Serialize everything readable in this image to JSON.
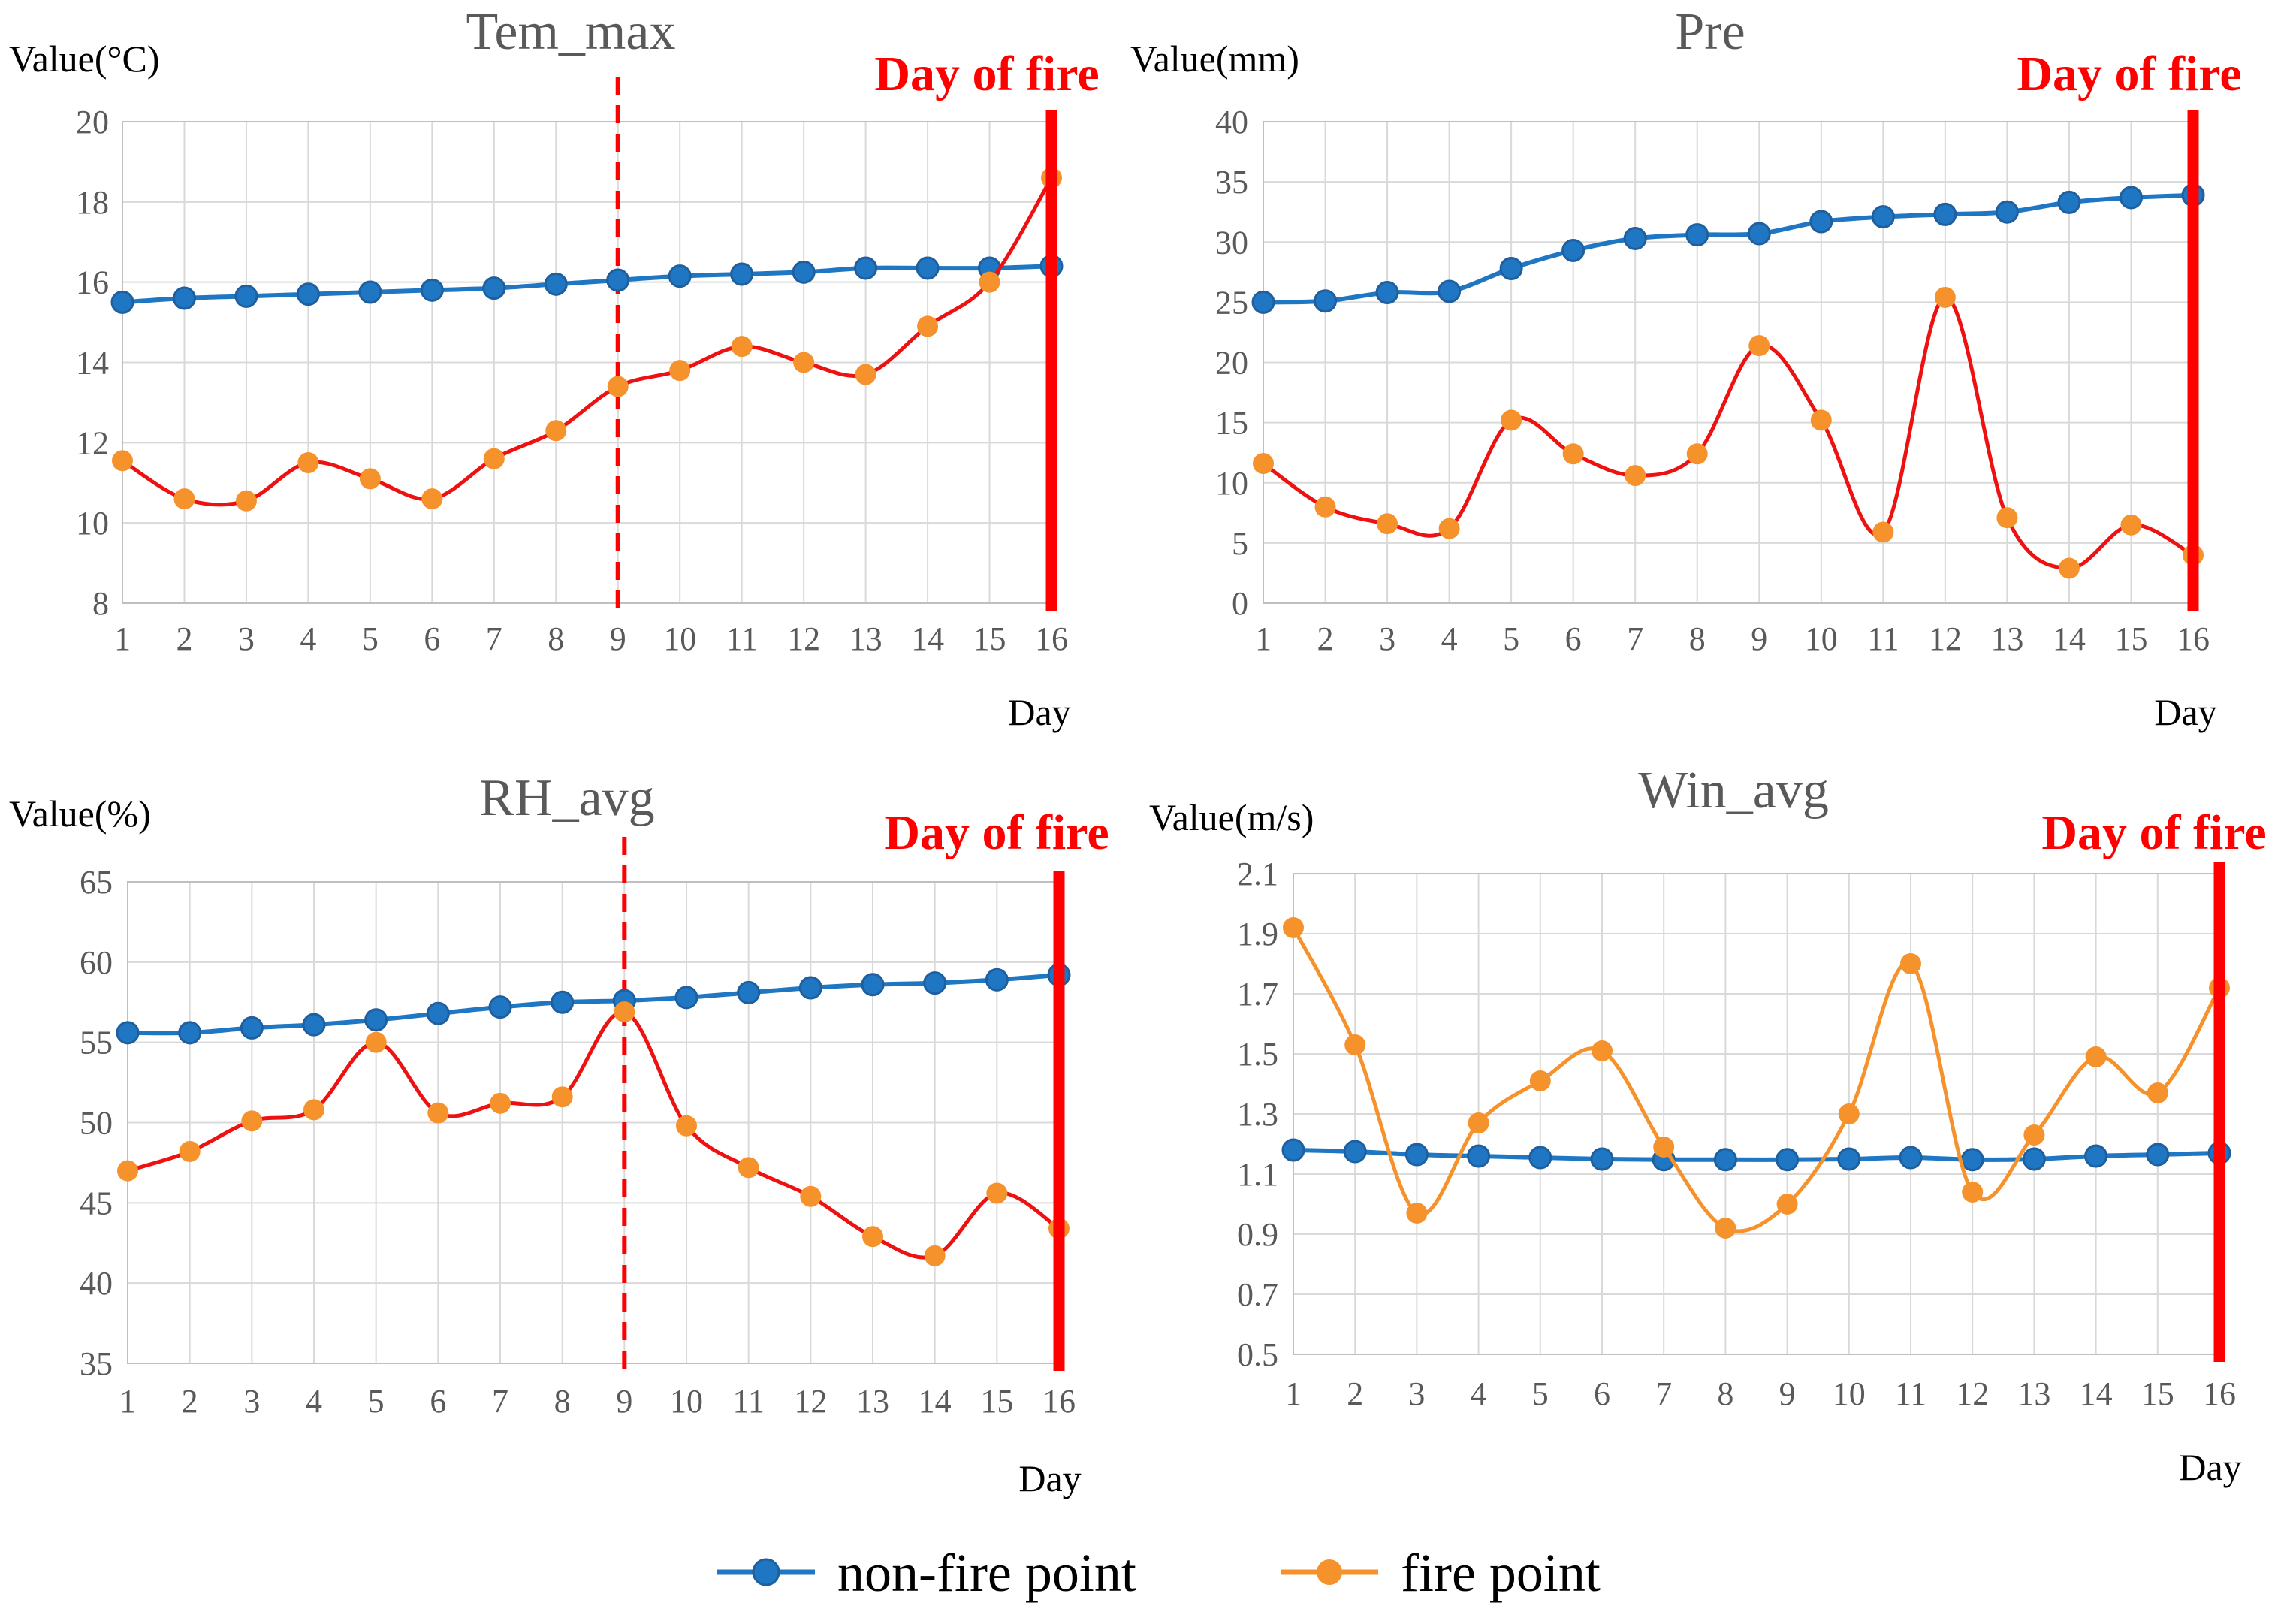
{
  "colors": {
    "non_fire_line": "#1f77c4",
    "non_fire_marker_edge": "#1f5f9e",
    "fire_marker": "#f5922b",
    "fire_line_red": "#ee1111",
    "fire_line_orange": "#f5922b",
    "fire_day": "#ff0000",
    "grid": "#d9d9d9",
    "axis": "#bfbfbf"
  },
  "legend": {
    "non_fire_label": "non-fire point",
    "fire_label": "fire point"
  },
  "chart_data": [
    {
      "type": "line",
      "title": "Tem_max",
      "ylabel": "Value(°C)",
      "xlabel": "Day",
      "fire_day_label": "Day of fire",
      "x": [
        1,
        2,
        3,
        4,
        5,
        6,
        7,
        8,
        9,
        10,
        11,
        12,
        13,
        14,
        15,
        16
      ],
      "ylim": [
        8,
        20
      ],
      "yticks": [
        8,
        10,
        12,
        14,
        16,
        18,
        20
      ],
      "y_tick_labels": [
        "8",
        "10",
        "12",
        "14",
        "16",
        "18",
        "20"
      ],
      "fire_day": 16,
      "dashed_line_day": 9,
      "fire_line_color": "red",
      "grid": true,
      "series": [
        {
          "key": "non_fire",
          "values": [
            15.5,
            15.6,
            15.65,
            15.7,
            15.75,
            15.8,
            15.85,
            15.95,
            16.05,
            16.15,
            16.2,
            16.25,
            16.35,
            16.35,
            16.35,
            16.4
          ]
        },
        {
          "key": "fire",
          "values": [
            11.55,
            10.6,
            10.55,
            11.5,
            11.1,
            10.6,
            11.6,
            12.3,
            13.4,
            13.8,
            14.4,
            14.0,
            13.7,
            14.9,
            16.0,
            18.6
          ]
        }
      ]
    },
    {
      "type": "line",
      "title": "Pre",
      "ylabel": "Value(mm)",
      "xlabel": "Day",
      "fire_day_label": "Day of fire",
      "x": [
        1,
        2,
        3,
        4,
        5,
        6,
        7,
        8,
        9,
        10,
        11,
        12,
        13,
        14,
        15,
        16
      ],
      "ylim": [
        0,
        40
      ],
      "yticks": [
        0,
        5,
        10,
        15,
        20,
        25,
        30,
        35,
        40
      ],
      "y_tick_labels": [
        "0",
        "5",
        "10",
        "15",
        "20",
        "25",
        "30",
        "35",
        "40"
      ],
      "fire_day": 16,
      "dashed_line_day": null,
      "fire_line_color": "red",
      "grid": true,
      "series": [
        {
          "key": "non_fire",
          "values": [
            25.0,
            25.1,
            25.8,
            25.9,
            27.8,
            29.3,
            30.3,
            30.6,
            30.7,
            31.7,
            32.1,
            32.3,
            32.5,
            33.3,
            33.7,
            33.9
          ]
        },
        {
          "key": "fire",
          "values": [
            11.6,
            8.0,
            6.6,
            6.2,
            15.2,
            12.4,
            10.6,
            12.4,
            21.4,
            15.2,
            5.9,
            25.4,
            7.1,
            2.9,
            6.5,
            4.0
          ]
        }
      ]
    },
    {
      "type": "line",
      "title": "RH_avg",
      "ylabel": "Value(%)",
      "xlabel": "Day",
      "fire_day_label": "Day of fire",
      "x": [
        1,
        2,
        3,
        4,
        5,
        6,
        7,
        8,
        9,
        10,
        11,
        12,
        13,
        14,
        15,
        16
      ],
      "ylim": [
        35,
        65
      ],
      "yticks": [
        35,
        40,
        45,
        50,
        55,
        60,
        65
      ],
      "y_tick_labels": [
        "35",
        "40",
        "45",
        "50",
        "55",
        "60",
        "65"
      ],
      "fire_day": 16,
      "dashed_line_day": 9,
      "fire_line_color": "red",
      "grid": true,
      "series": [
        {
          "key": "non_fire",
          "values": [
            55.6,
            55.6,
            55.9,
            56.1,
            56.4,
            56.8,
            57.2,
            57.5,
            57.6,
            57.8,
            58.1,
            58.4,
            58.6,
            58.7,
            58.9,
            59.2
          ]
        },
        {
          "key": "fire",
          "values": [
            47.0,
            48.2,
            50.1,
            50.8,
            55.0,
            50.6,
            51.2,
            51.6,
            56.9,
            49.8,
            47.2,
            45.4,
            42.9,
            41.7,
            45.6,
            43.4
          ]
        }
      ]
    },
    {
      "type": "line",
      "title": "Win_avg",
      "ylabel": "Value(m/s)",
      "xlabel": "Day",
      "fire_day_label": "Day of fire",
      "x": [
        1,
        2,
        3,
        4,
        5,
        6,
        7,
        8,
        9,
        10,
        11,
        12,
        13,
        14,
        15,
        16
      ],
      "ylim": [
        0.5,
        2.1
      ],
      "yticks": [
        0.5,
        0.7,
        0.9,
        1.1,
        1.3,
        1.5,
        1.7,
        1.9,
        2.1
      ],
      "y_tick_labels": [
        "0.5",
        "0.7",
        "0.9",
        "1.1",
        "1.3",
        "1.5",
        "1.7",
        "1.9",
        "2.1"
      ],
      "fire_day": 16,
      "dashed_line_day": null,
      "fire_line_color": "orange",
      "grid": true,
      "series": [
        {
          "key": "non_fire",
          "values": [
            1.18,
            1.175,
            1.165,
            1.16,
            1.155,
            1.15,
            1.148,
            1.148,
            1.148,
            1.15,
            1.155,
            1.148,
            1.15,
            1.16,
            1.165,
            1.17
          ]
        },
        {
          "key": "fire",
          "values": [
            1.92,
            1.53,
            0.97,
            1.27,
            1.41,
            1.51,
            1.19,
            0.92,
            1.0,
            1.3,
            1.8,
            1.04,
            1.23,
            1.49,
            1.37,
            1.72
          ]
        }
      ]
    }
  ]
}
